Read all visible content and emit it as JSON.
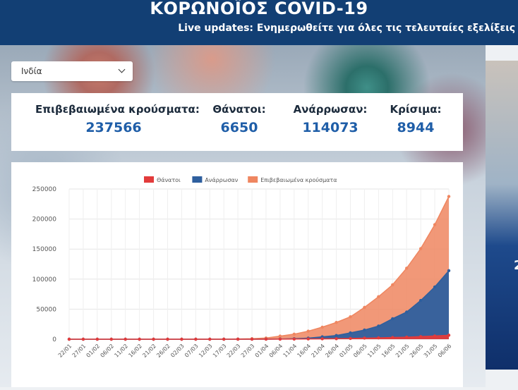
{
  "header": {
    "title": "ΚΟΡΩΝΟΪΟΣ COVID-19",
    "subtitle": "Live updates: Ενημερωθείτε για όλες τις τελευταίες εξελίξεις"
  },
  "country_select": {
    "value": "Ινδία",
    "icon": "chevron-down-icon"
  },
  "stats": {
    "confirmed": {
      "label": "Επιβεβαιωμένα κρούσματα:",
      "value": "237566"
    },
    "deaths": {
      "label": "Θάνατοι:",
      "value": "6650"
    },
    "recovered": {
      "label": "Ανάρρωσαν:",
      "value": "114073"
    },
    "critical": {
      "label": "Κρίσιμα:",
      "value": "8944"
    }
  },
  "side_panel": {
    "text": "2"
  },
  "colors": {
    "header_bg": "#123f74",
    "deaths": "#e23b3b",
    "recovered": "#2e5f9e",
    "confirmed": "#ef8660",
    "stat_number": "#1f5ea8"
  },
  "chart_data": {
    "type": "area",
    "title": "",
    "xlabel": "",
    "ylabel": "",
    "ylim": [
      0,
      250000
    ],
    "yticks": [
      0,
      50000,
      100000,
      150000,
      200000,
      250000
    ],
    "grid": true,
    "legend_position": "top-center",
    "x_tick_labels": [
      "22/01",
      "27/01",
      "01/02",
      "06/02",
      "11/02",
      "16/02",
      "21/02",
      "26/02",
      "02/03",
      "07/03",
      "12/03",
      "17/03",
      "22/03",
      "27/03",
      "01/04",
      "06/04",
      "11/04",
      "16/04",
      "21/04",
      "26/04",
      "01/05",
      "06/05",
      "11/05",
      "16/05",
      "21/05",
      "26/05",
      "31/05",
      "06/06"
    ],
    "series": [
      {
        "name": "Θάνατοι",
        "color": "#e23b3b",
        "values": [
          0,
          0,
          0,
          0,
          0,
          0,
          0,
          0,
          0,
          0,
          1,
          3,
          7,
          17,
          50,
          109,
          242,
          488,
          640,
          826,
          1223,
          1783,
          2206,
          2872,
          3435,
          4337,
          5394,
          6650
        ]
      },
      {
        "name": "Ανάρρωσαν",
        "color": "#2e5f9e",
        "values": [
          0,
          0,
          0,
          0,
          3,
          3,
          3,
          3,
          3,
          3,
          10,
          14,
          23,
          45,
          156,
          328,
          860,
          1767,
          3975,
          6185,
          10632,
          15331,
          21918,
          34109,
          45300,
          64426,
          86984,
          114073
        ]
      },
      {
        "name": "Επιβεβαιωμένα κρούσματα",
        "color": "#ef8660",
        "values": [
          0,
          0,
          1,
          3,
          3,
          3,
          3,
          3,
          3,
          31,
          74,
          138,
          396,
          887,
          1998,
          5194,
          8447,
          13430,
          20080,
          27890,
          37336,
          52952,
          70756,
          90648,
          118226,
          150793,
          190609,
          237566
        ]
      }
    ]
  }
}
